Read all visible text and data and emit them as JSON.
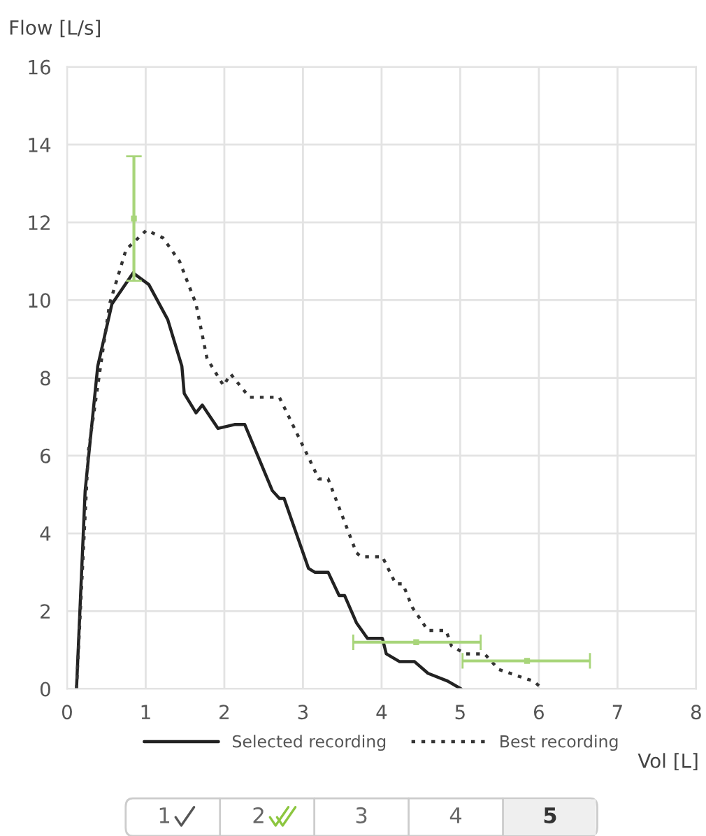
{
  "chart_data": {
    "type": "line",
    "xlabel": "Vol [L]",
    "ylabel": "Flow [L/s]",
    "xlim": [
      0,
      8
    ],
    "xticks": [
      0,
      1,
      2,
      3,
      4,
      5,
      6,
      7,
      8
    ],
    "ylim": [
      0,
      16
    ],
    "yticks": [
      0,
      2,
      4,
      6,
      8,
      10,
      12,
      14,
      16
    ],
    "grid": true,
    "legend": "bottom",
    "series": [
      {
        "name": "Selected recording",
        "line_style": "solid",
        "color": "#222222",
        "x": [
          0.12,
          0.23,
          0.39,
          0.57,
          0.84,
          1.04,
          1.28,
          1.46,
          1.49,
          1.64,
          1.72,
          1.92,
          2.13,
          2.26,
          2.61,
          2.7,
          2.76,
          3.07,
          3.15,
          3.32,
          3.46,
          3.53,
          3.68,
          3.82,
          4.01,
          4.06,
          4.23,
          4.42,
          4.59,
          4.84,
          5.01
        ],
        "values": [
          0,
          5.1,
          8.3,
          9.9,
          10.7,
          10.4,
          9.5,
          8.3,
          7.6,
          7.1,
          7.3,
          6.7,
          6.8,
          6.8,
          5.1,
          4.9,
          4.9,
          3.1,
          3.0,
          3.0,
          2.4,
          2.4,
          1.7,
          1.3,
          1.3,
          0.9,
          0.7,
          0.7,
          0.4,
          0.2,
          0
        ]
      },
      {
        "name": "Best recording",
        "line_style": "dotted",
        "color": "#333333",
        "x": [
          0.12,
          0.27,
          0.54,
          0.75,
          1.01,
          1.22,
          1.43,
          1.64,
          1.78,
          1.99,
          2.08,
          2.32,
          2.7,
          3.06,
          3.2,
          3.32,
          3.68,
          3.74,
          4.01,
          4.18,
          4.27,
          4.39,
          4.59,
          4.82,
          4.89,
          5.07,
          5.31,
          5.49,
          5.78,
          5.93,
          6.05
        ],
        "values": [
          0,
          6.1,
          9.9,
          11.3,
          11.8,
          11.6,
          11.0,
          9.9,
          8.5,
          7.8,
          8.1,
          7.5,
          7.5,
          6.0,
          5.4,
          5.4,
          3.5,
          3.4,
          3.4,
          2.7,
          2.7,
          2.1,
          1.5,
          1.5,
          1.1,
          0.9,
          0.9,
          0.5,
          0.3,
          0.2,
          0
        ]
      },
      {
        "type": "scatter",
        "marker": "square",
        "color": "#a8d57a",
        "x": [
          0.85
        ],
        "values": [
          12.1
        ],
        "errors": [
          [
            10.5,
            13.7
          ]
        ]
      },
      {
        "type": "scatter",
        "marker": "square",
        "color": "#a8d57a",
        "x": [
          4.44,
          5.85
        ],
        "values": [
          1.2,
          0.72
        ],
        "xerrors": [
          [
            3.64,
            5.26
          ],
          [
            5.03,
            6.65
          ]
        ]
      }
    ],
    "annotations": [
      "1",
      "2",
      "3",
      "4",
      "5"
    ]
  }
}
